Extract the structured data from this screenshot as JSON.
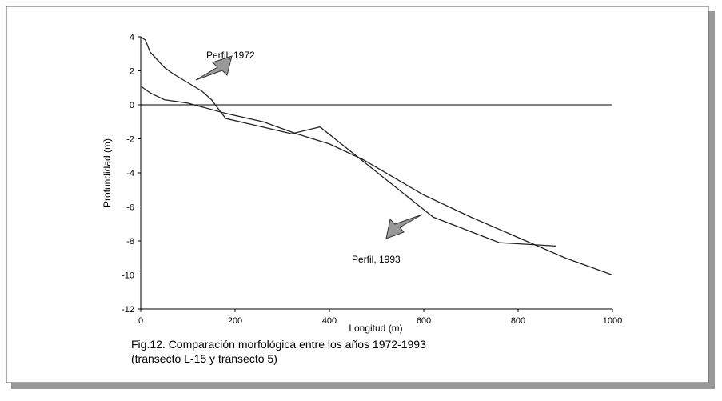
{
  "chart_data": {
    "type": "line",
    "xlabel": "Longitud (m)",
    "ylabel": "Profundidad (m)",
    "caption": [
      "Fig.12. Comparación morfológica entre los años 1972-1993",
      "(transecto L-15 y transecto 5)"
    ],
    "xlim": [
      0,
      1000
    ],
    "xticks": [
      0,
      200,
      400,
      600,
      800,
      1000
    ],
    "ylim": [
      -12,
      4
    ],
    "yticks": [
      -12,
      -10,
      -8,
      -6,
      -4,
      -2,
      0,
      2,
      4
    ],
    "series": [
      {
        "name": "Perfil, 1972",
        "color": "#222222",
        "x": [
          0,
          10,
          20,
          30,
          50,
          70,
          100,
          130,
          150,
          180,
          320,
          380,
          620,
          760,
          880
        ],
        "values": [
          4,
          3.8,
          3.1,
          2.8,
          2.2,
          1.8,
          1.3,
          0.8,
          0.3,
          -0.8,
          -1.7,
          -1.3,
          -6.6,
          -8.1,
          -8.3
        ]
      },
      {
        "name": "Perfil, 1993",
        "color": "#222222",
        "x": [
          0,
          20,
          50,
          100,
          180,
          260,
          330,
          400,
          470,
          600,
          700,
          800,
          900,
          1000
        ],
        "values": [
          1.1,
          0.7,
          0.3,
          0.1,
          -0.5,
          -1.0,
          -1.7,
          -2.3,
          -3.2,
          -5.3,
          -6.6,
          -7.8,
          -9.0,
          -10
        ]
      }
    ]
  }
}
